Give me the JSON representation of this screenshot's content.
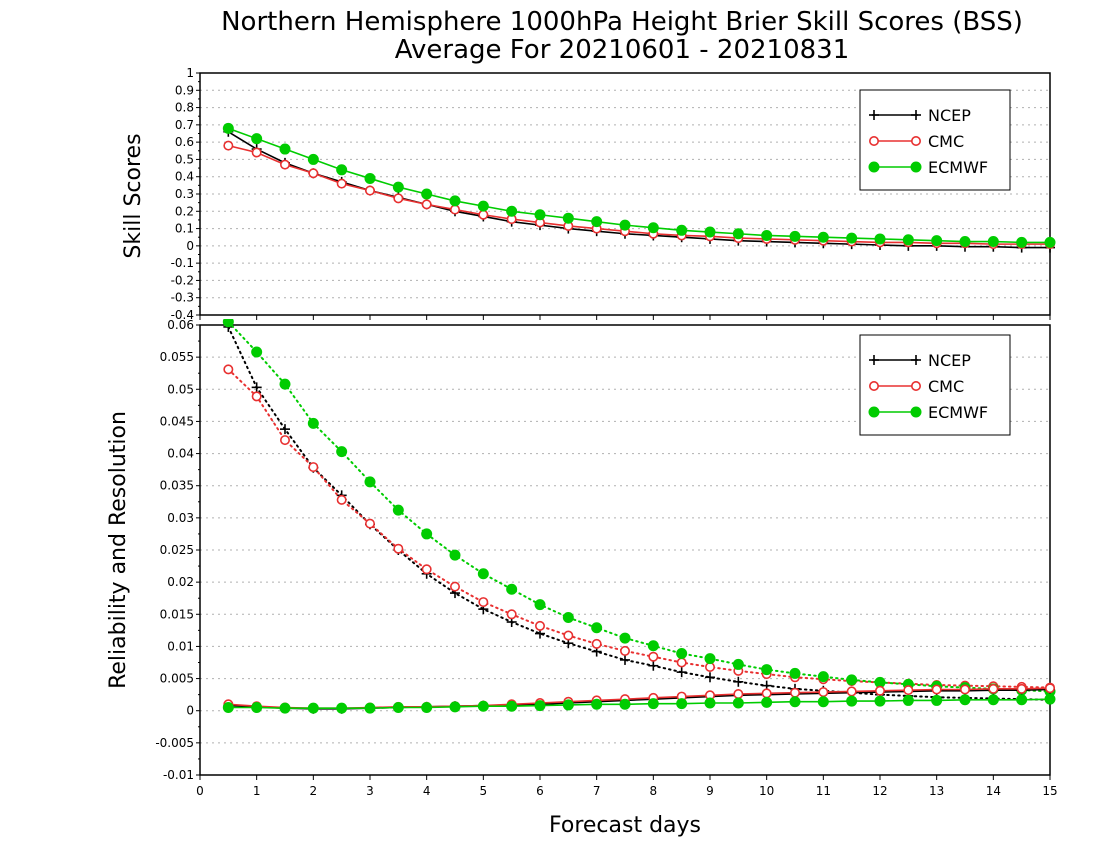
{
  "title_line1": "Northern Hemisphere 1000hPa Height Brier Skill Scores (BSS)",
  "title_line2": "Average For 20210601 - 20210831",
  "colors": {
    "NCEP": "#000000",
    "CMC": "#e83030",
    "ECMWF": "#00cc00"
  },
  "chart_data": [
    {
      "type": "line",
      "ylabel": "Skill Scores",
      "xlim": [
        0,
        15
      ],
      "ylim": [
        -0.4,
        1
      ],
      "yticks": [
        "1",
        "0.9",
        "0.8",
        "0.7",
        "0.6",
        "0.5",
        "0.4",
        "0.3",
        "0.2",
        "0.1",
        "0",
        "-0.1",
        "-0.2",
        "-0.3",
        "-0.4"
      ],
      "grid": true,
      "legend_position": "top-right",
      "x": [
        0.5,
        1,
        1.5,
        2,
        2.5,
        3,
        3.5,
        4,
        4.5,
        5,
        5.5,
        6,
        6.5,
        7,
        7.5,
        8,
        8.5,
        9,
        9.5,
        10,
        10.5,
        11,
        11.5,
        12,
        12.5,
        13,
        13.5,
        14,
        14.5,
        15
      ],
      "series": [
        {
          "name": "NCEP",
          "marker": "plus",
          "line": "solid",
          "values": [
            0.66,
            0.56,
            0.48,
            0.42,
            0.37,
            0.32,
            0.28,
            0.24,
            0.2,
            0.17,
            0.14,
            0.12,
            0.1,
            0.085,
            0.07,
            0.06,
            0.05,
            0.04,
            0.03,
            0.025,
            0.02,
            0.015,
            0.01,
            0.005,
            0,
            0,
            -0.005,
            -0.005,
            -0.01,
            -0.01
          ]
        },
        {
          "name": "CMC",
          "marker": "circle",
          "line": "solid",
          "values": [
            0.58,
            0.54,
            0.47,
            0.42,
            0.36,
            0.32,
            0.275,
            0.24,
            0.21,
            0.18,
            0.155,
            0.135,
            0.115,
            0.1,
            0.085,
            0.07,
            0.06,
            0.055,
            0.045,
            0.04,
            0.035,
            0.03,
            0.025,
            0.02,
            0.02,
            0.015,
            0.015,
            0.01,
            0.01,
            0.01
          ]
        },
        {
          "name": "ECMWF",
          "marker": "dot",
          "line": "solid",
          "values": [
            0.68,
            0.62,
            0.56,
            0.5,
            0.44,
            0.39,
            0.34,
            0.3,
            0.26,
            0.23,
            0.2,
            0.18,
            0.16,
            0.14,
            0.12,
            0.105,
            0.09,
            0.08,
            0.07,
            0.06,
            0.055,
            0.05,
            0.045,
            0.04,
            0.035,
            0.03,
            0.025,
            0.025,
            0.02,
            0.02
          ]
        }
      ]
    },
    {
      "type": "line",
      "ylabel": "Reliability and Resolution",
      "xlabel": "Forecast days",
      "xlim": [
        0,
        15
      ],
      "ylim": [
        -0.01,
        0.06
      ],
      "yticks": [
        "0.06",
        "0.055",
        "0.05",
        "0.045",
        "0.04",
        "0.035",
        "0.03",
        "0.025",
        "0.02",
        "0.015",
        "0.01",
        "0.005",
        "0",
        "-0.005",
        "-0.01"
      ],
      "xticks": [
        "0",
        "1",
        "2",
        "3",
        "4",
        "5",
        "6",
        "7",
        "8",
        "9",
        "10",
        "11",
        "12",
        "13",
        "14",
        "15"
      ],
      "grid": true,
      "legend_position": "top-right",
      "x": [
        0.5,
        1,
        1.5,
        2,
        2.5,
        3,
        3.5,
        4,
        4.5,
        5,
        5.5,
        6,
        6.5,
        7,
        7.5,
        8,
        8.5,
        9,
        9.5,
        10,
        10.5,
        11,
        11.5,
        12,
        12.5,
        13,
        13.5,
        14,
        14.5,
        15
      ],
      "series": [
        {
          "name": "NCEP",
          "marker": "plus",
          "line": "dotted",
          "group": "resolution",
          "values": [
            0.0597,
            0.0503,
            0.0438,
            0.0378,
            0.0335,
            0.029,
            0.025,
            0.0213,
            0.0183,
            0.0158,
            0.0138,
            0.012,
            0.0105,
            0.0092,
            0.0079,
            0.007,
            0.006,
            0.0052,
            0.0045,
            0.0039,
            0.0034,
            0.0031,
            0.0028,
            0.0025,
            0.0023,
            0.0021,
            0.002,
            0.0019,
            0.0018,
            0.0017
          ]
        },
        {
          "name": "CMC",
          "marker": "circle",
          "line": "dotted",
          "group": "resolution",
          "values": [
            0.0531,
            0.0489,
            0.0421,
            0.0379,
            0.0328,
            0.0291,
            0.0252,
            0.022,
            0.0193,
            0.0169,
            0.015,
            0.0132,
            0.0117,
            0.0104,
            0.0093,
            0.0084,
            0.0075,
            0.0068,
            0.0062,
            0.0057,
            0.0052,
            0.0049,
            0.0046,
            0.0044,
            0.0042,
            0.004,
            0.0039,
            0.0038,
            0.0037,
            0.0036
          ]
        },
        {
          "name": "ECMWF",
          "marker": "dot",
          "line": "dotted",
          "group": "resolution",
          "values": [
            0.0605,
            0.0558,
            0.0508,
            0.0447,
            0.0403,
            0.0356,
            0.0312,
            0.0275,
            0.0242,
            0.0213,
            0.0189,
            0.0165,
            0.0145,
            0.0129,
            0.0113,
            0.0101,
            0.0089,
            0.0081,
            0.0072,
            0.0064,
            0.0058,
            0.0053,
            0.0048,
            0.0044,
            0.0041,
            0.0038,
            0.0036,
            0.0034,
            0.0032,
            0.003
          ]
        },
        {
          "name": "NCEP",
          "marker": "plus",
          "line": "solid",
          "group": "reliability",
          "values": [
            0.0008,
            0.0006,
            0.0004,
            0.0003,
            0.0003,
            0.0004,
            0.0005,
            0.0006,
            0.0007,
            0.0008,
            0.0009,
            0.001,
            0.0012,
            0.0014,
            0.0016,
            0.0018,
            0.002,
            0.0022,
            0.0024,
            0.0025,
            0.0026,
            0.0027,
            0.0028,
            0.0029,
            0.003,
            0.0031,
            0.0031,
            0.0032,
            0.0032,
            0.0033
          ]
        },
        {
          "name": "CMC",
          "marker": "circle",
          "line": "solid",
          "group": "reliability",
          "values": [
            0.001,
            0.0007,
            0.0005,
            0.0004,
            0.0004,
            0.0005,
            0.0006,
            0.0006,
            0.0007,
            0.0008,
            0.001,
            0.0012,
            0.0014,
            0.0016,
            0.0018,
            0.002,
            0.0022,
            0.0024,
            0.0026,
            0.0027,
            0.0028,
            0.0029,
            0.003,
            0.0031,
            0.0032,
            0.0033,
            0.0033,
            0.0034,
            0.0034,
            0.0035
          ]
        },
        {
          "name": "ECMWF",
          "marker": "dot",
          "line": "solid",
          "group": "reliability",
          "values": [
            0.0005,
            0.0005,
            0.0004,
            0.0004,
            0.0004,
            0.0004,
            0.0005,
            0.0005,
            0.0006,
            0.0007,
            0.0007,
            0.0008,
            0.0009,
            0.001,
            0.001,
            0.0011,
            0.0011,
            0.0012,
            0.0012,
            0.0013,
            0.0014,
            0.0014,
            0.0015,
            0.0015,
            0.0016,
            0.0016,
            0.0017,
            0.0017,
            0.0017,
            0.0018
          ]
        }
      ]
    }
  ]
}
